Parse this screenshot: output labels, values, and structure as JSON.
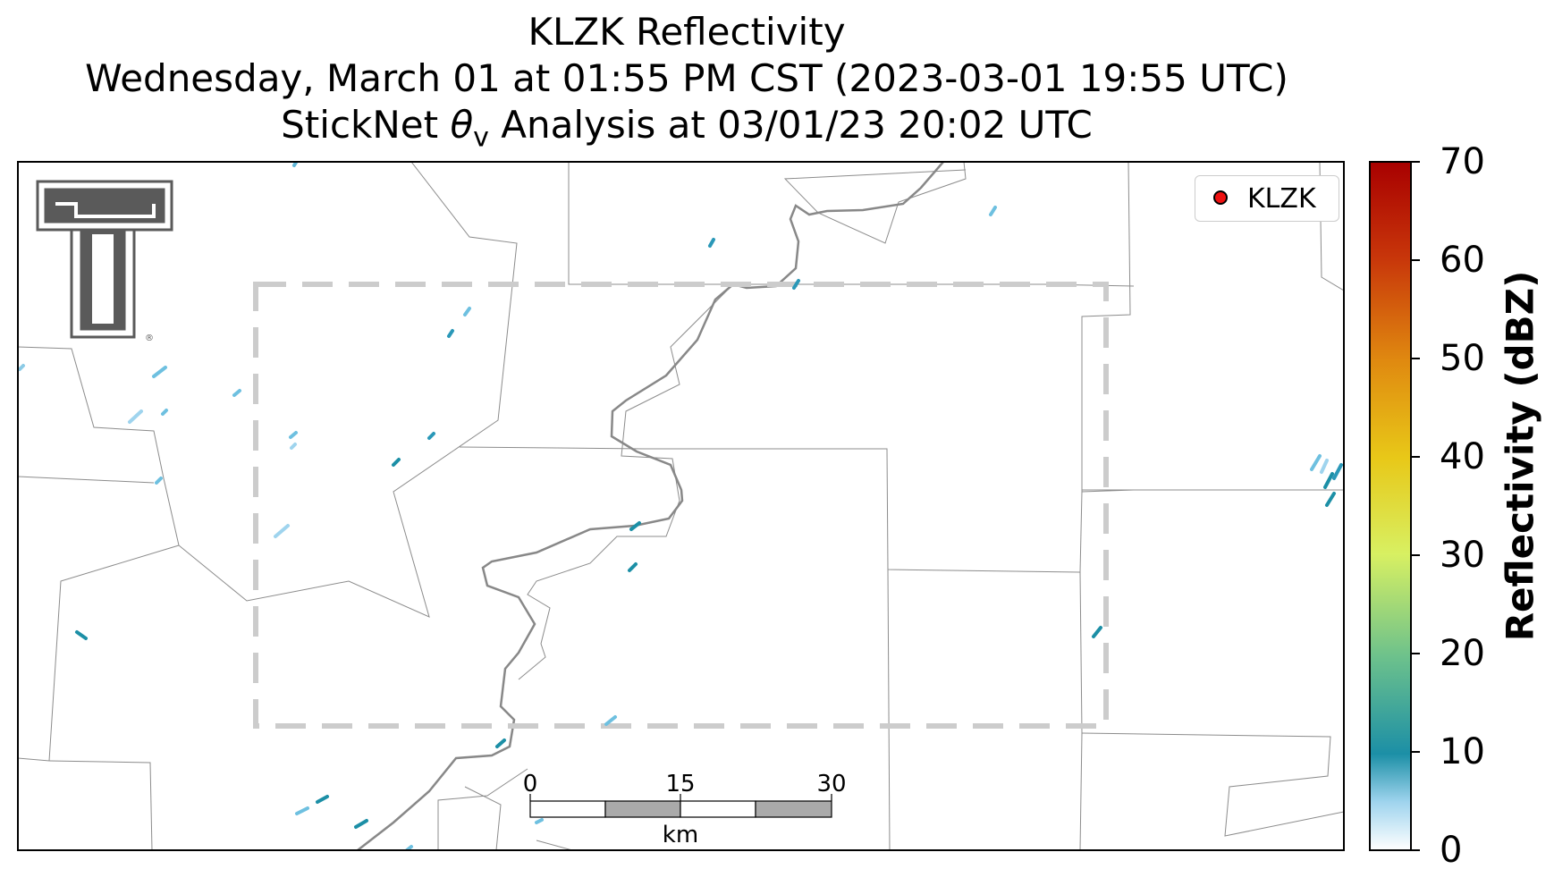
{
  "title": {
    "line1": "KLZK Reflectivity",
    "line2": "Wednesday, March 01 at 01:55 PM CST (2023-03-01 19:55 UTC)",
    "line3_prefix": "StickNet ",
    "line3_theta": "θ",
    "line3_sub": "v",
    "line3_suffix": " Analysis at 03/01/23 20:02 UTC"
  },
  "legend": {
    "label": "KLZK",
    "marker_color": "#ee1111"
  },
  "colorbar": {
    "label": "Reflectivity (dBZ)",
    "ticks": [
      "0",
      "10",
      "20",
      "30",
      "40",
      "50",
      "60",
      "70"
    ],
    "range": [
      0,
      70
    ],
    "colors": [
      "#ffffff",
      "#9fd4ee",
      "#1c8fa6",
      "#6cc18c",
      "#d8f062",
      "#e8c818",
      "#e08a10",
      "#c8360a",
      "#a80000"
    ]
  },
  "scalebar": {
    "unit": "km",
    "ticks": [
      "0",
      "15",
      "30"
    ]
  },
  "logo": {
    "name": "Texas Tech Double T",
    "mark": "®"
  },
  "colors": {
    "boundary": "#8c8c8c",
    "river": "#888888",
    "analysis_box": "#cccccc"
  }
}
